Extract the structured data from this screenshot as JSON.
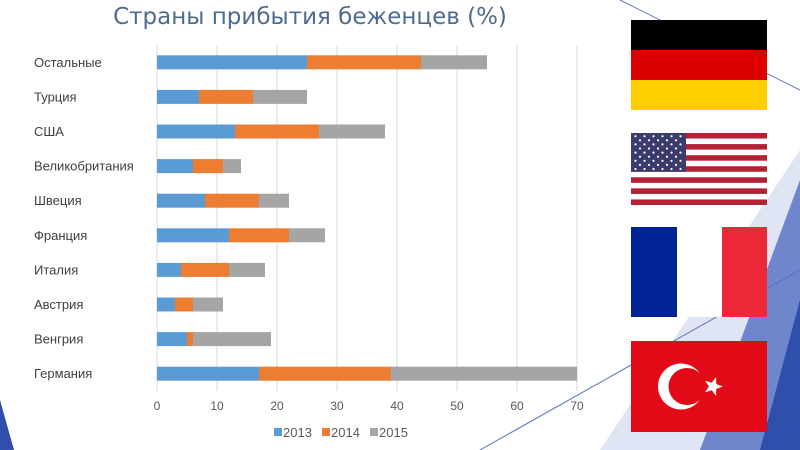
{
  "chart_data": {
    "type": "bar",
    "stacked": true,
    "orientation": "horizontal",
    "title": "Страны прибытия беженцев (%)",
    "categories": [
      "Германия",
      "Венгрия",
      "Австрия",
      "Италия",
      "Франция",
      "Швеция",
      "Великобритания",
      "США",
      "Турция",
      "Остальные"
    ],
    "series": [
      {
        "name": "2013",
        "color": "#5b9bd5",
        "values": [
          17,
          5,
          3,
          4,
          12,
          8,
          6,
          13,
          7,
          25
        ]
      },
      {
        "name": "2014",
        "color": "#ed7d31",
        "values": [
          22,
          1,
          3,
          8,
          10,
          9,
          5,
          14,
          9,
          19
        ]
      },
      {
        "name": "2015",
        "color": "#a5a5a5",
        "values": [
          31,
          13,
          5,
          6,
          6,
          5,
          3,
          11,
          9,
          11
        ]
      }
    ],
    "xlim": [
      0,
      70
    ],
    "xticks": [
      "0",
      "10",
      "20",
      "30",
      "40",
      "50",
      "60",
      "70"
    ],
    "grid": true,
    "legend_position": "bottom"
  },
  "flags": [
    "germany-flag",
    "usa-flag",
    "france-flag",
    "turkey-flag"
  ],
  "theme": {
    "accent": "#2f4faa",
    "accent_light": "#6f86cc",
    "title_color": "#4e6b8d",
    "axis_text": "#595959"
  }
}
